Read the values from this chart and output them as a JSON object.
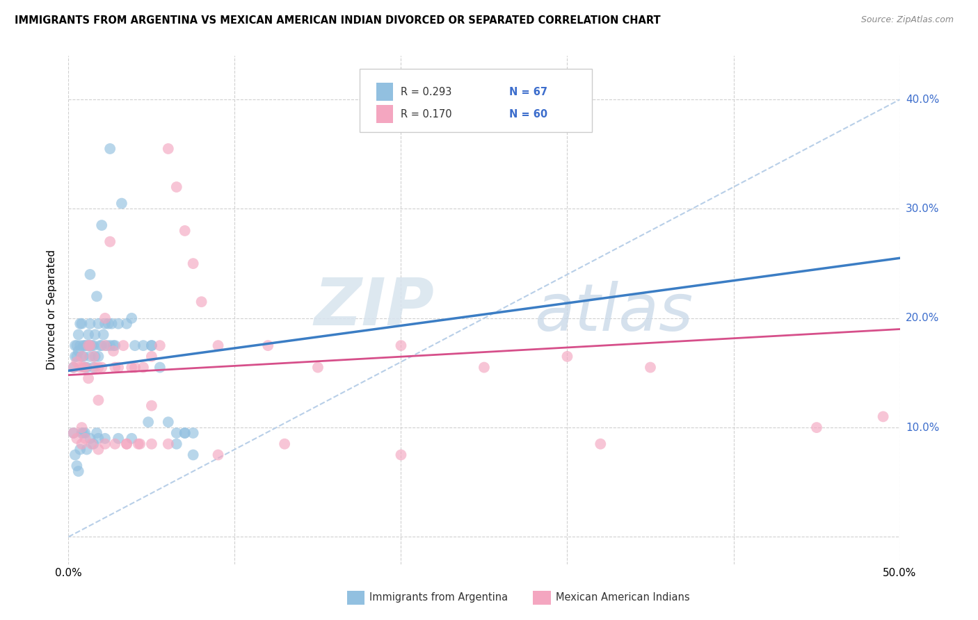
{
  "title": "IMMIGRANTS FROM ARGENTINA VS MEXICAN AMERICAN INDIAN DIVORCED OR SEPARATED CORRELATION CHART",
  "source": "Source: ZipAtlas.com",
  "ylabel": "Divorced or Separated",
  "watermark_zip": "ZIP",
  "watermark_atlas": "atlas",
  "legend1_r": "R = 0.293",
  "legend1_n": "N = 67",
  "legend2_r": "R = 0.170",
  "legend2_n": "N = 60",
  "legend1_series": "Immigrants from Argentina",
  "legend2_series": "Mexican American Indians",
  "blue_color": "#92c0e0",
  "pink_color": "#f4a6c0",
  "blue_line_color": "#3b7dc4",
  "pink_line_color": "#d64f8a",
  "dashed_line_color": "#b8cfe8",
  "label_color": "#3c6dcc",
  "text_color": "#333333",
  "xlim": [
    0.0,
    0.5
  ],
  "ylim": [
    -0.025,
    0.44
  ],
  "xtick_values": [
    0.0,
    0.1,
    0.2,
    0.3,
    0.4,
    0.5
  ],
  "ytick_values": [
    0.0,
    0.1,
    0.2,
    0.3,
    0.4
  ],
  "blue_x": [
    0.003,
    0.004,
    0.004,
    0.005,
    0.005,
    0.006,
    0.006,
    0.007,
    0.007,
    0.008,
    0.008,
    0.009,
    0.009,
    0.01,
    0.01,
    0.011,
    0.011,
    0.012,
    0.012,
    0.013,
    0.013,
    0.013,
    0.014,
    0.015,
    0.015,
    0.016,
    0.016,
    0.017,
    0.018,
    0.018,
    0.019,
    0.02,
    0.021,
    0.022,
    0.023,
    0.024,
    0.025,
    0.026,
    0.027,
    0.028,
    0.03,
    0.032,
    0.035,
    0.038,
    0.04,
    0.045,
    0.05,
    0.055,
    0.06,
    0.065,
    0.07,
    0.075,
    0.02,
    0.013,
    0.017,
    0.048,
    0.07
  ],
  "blue_y": [
    0.155,
    0.165,
    0.175,
    0.165,
    0.175,
    0.17,
    0.185,
    0.195,
    0.175,
    0.165,
    0.195,
    0.175,
    0.165,
    0.155,
    0.175,
    0.155,
    0.175,
    0.175,
    0.185,
    0.165,
    0.175,
    0.195,
    0.175,
    0.155,
    0.175,
    0.165,
    0.185,
    0.22,
    0.165,
    0.195,
    0.175,
    0.175,
    0.185,
    0.195,
    0.175,
    0.195,
    0.175,
    0.195,
    0.175,
    0.175,
    0.195,
    0.305,
    0.195,
    0.2,
    0.175,
    0.175,
    0.175,
    0.155,
    0.105,
    0.095,
    0.095,
    0.095,
    0.285,
    0.24,
    0.095,
    0.105,
    0.095
  ],
  "blue_x2": [
    0.003,
    0.004,
    0.005,
    0.006,
    0.007,
    0.008,
    0.009,
    0.01,
    0.011,
    0.013,
    0.015,
    0.018,
    0.022,
    0.025,
    0.03,
    0.038,
    0.05,
    0.065,
    0.075
  ],
  "blue_y2": [
    0.095,
    0.075,
    0.065,
    0.06,
    0.08,
    0.095,
    0.095,
    0.095,
    0.08,
    0.09,
    0.085,
    0.09,
    0.09,
    0.355,
    0.09,
    0.09,
    0.175,
    0.085,
    0.075
  ],
  "pink_x": [
    0.003,
    0.005,
    0.007,
    0.008,
    0.009,
    0.01,
    0.012,
    0.013,
    0.015,
    0.016,
    0.018,
    0.02,
    0.022,
    0.025,
    0.027,
    0.03,
    0.033,
    0.038,
    0.04,
    0.045,
    0.05,
    0.055,
    0.06,
    0.065,
    0.07,
    0.075,
    0.08,
    0.09,
    0.12,
    0.15,
    0.2,
    0.25,
    0.3,
    0.35,
    0.45,
    0.49,
    0.008,
    0.012,
    0.018,
    0.022,
    0.028,
    0.035,
    0.043,
    0.05
  ],
  "pink_y": [
    0.155,
    0.16,
    0.155,
    0.165,
    0.155,
    0.155,
    0.175,
    0.175,
    0.165,
    0.155,
    0.155,
    0.155,
    0.175,
    0.27,
    0.17,
    0.155,
    0.175,
    0.155,
    0.155,
    0.155,
    0.165,
    0.175,
    0.355,
    0.32,
    0.28,
    0.25,
    0.215,
    0.175,
    0.175,
    0.155,
    0.175,
    0.155,
    0.165,
    0.155,
    0.1,
    0.11,
    0.1,
    0.145,
    0.125,
    0.2,
    0.155,
    0.085,
    0.085,
    0.085
  ],
  "pink_x2": [
    0.003,
    0.005,
    0.008,
    0.01,
    0.014,
    0.018,
    0.022,
    0.028,
    0.035,
    0.042,
    0.05,
    0.06,
    0.09,
    0.13,
    0.2,
    0.32
  ],
  "pink_y2": [
    0.095,
    0.09,
    0.085,
    0.09,
    0.085,
    0.08,
    0.085,
    0.085,
    0.085,
    0.085,
    0.12,
    0.085,
    0.075,
    0.085,
    0.075,
    0.085
  ]
}
